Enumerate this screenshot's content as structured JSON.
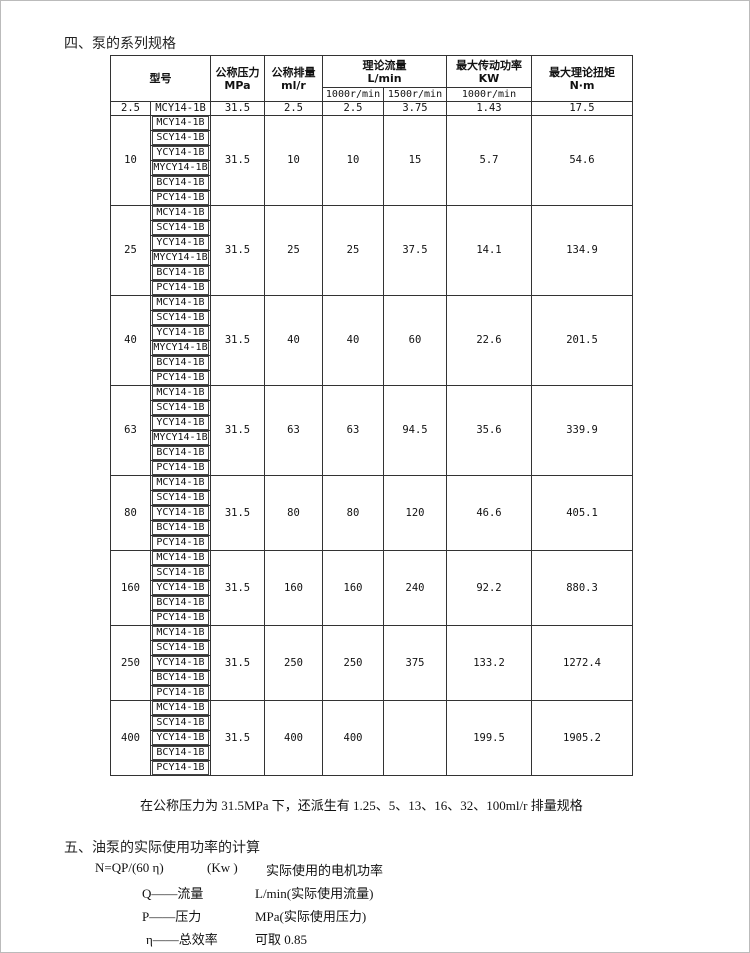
{
  "section4_title": "四、泵的系列规格",
  "table": {
    "headers": {
      "model": "型号",
      "pressure": "公称压力",
      "pressure_unit": "MPa",
      "displacement": "公称排量",
      "displacement_unit": "ml/r",
      "flow": "理论流量",
      "flow_unit": "L/min",
      "flow_1000": "1000r/min",
      "flow_1500": "1500r/min",
      "power": "最大传动功率",
      "power_unit": "KW",
      "power_speed": "1000r/min",
      "torque": "最大理论扭矩",
      "torque_unit": "N·m"
    },
    "groups": [
      {
        "size": "2.5",
        "models": [
          "MCY14-1B"
        ],
        "pressure": "31.5",
        "displacement": "2.5",
        "q1000": "2.5",
        "q1500": "3.75",
        "power": "1.43",
        "torque": "17.5"
      },
      {
        "size": "10",
        "models": [
          "MCY14-1B",
          "SCY14-1B",
          "YCY14-1B",
          "MYCY14-1B",
          "BCY14-1B",
          "PCY14-1B"
        ],
        "pressure": "31.5",
        "displacement": "10",
        "q1000": "10",
        "q1500": "15",
        "power": "5.7",
        "torque": "54.6"
      },
      {
        "size": "25",
        "models": [
          "MCY14-1B",
          "SCY14-1B",
          "YCY14-1B",
          "MYCY14-1B",
          "BCY14-1B",
          "PCY14-1B"
        ],
        "pressure": "31.5",
        "displacement": "25",
        "q1000": "25",
        "q1500": "37.5",
        "power": "14.1",
        "torque": "134.9"
      },
      {
        "size": "40",
        "models": [
          "MCY14-1B",
          "SCY14-1B",
          "YCY14-1B",
          "MYCY14-1B",
          "BCY14-1B",
          "PCY14-1B"
        ],
        "pressure": "31.5",
        "displacement": "40",
        "q1000": "40",
        "q1500": "60",
        "power": "22.6",
        "torque": "201.5"
      },
      {
        "size": "63",
        "models": [
          "MCY14-1B",
          "SCY14-1B",
          "YCY14-1B",
          "MYCY14-1B",
          "BCY14-1B",
          "PCY14-1B"
        ],
        "pressure": "31.5",
        "displacement": "63",
        "q1000": "63",
        "q1500": "94.5",
        "power": "35.6",
        "torque": "339.9"
      },
      {
        "size": "80",
        "models": [
          "MCY14-1B",
          "SCY14-1B",
          "YCY14-1B",
          "BCY14-1B",
          "PCY14-1B"
        ],
        "pressure": "31.5",
        "displacement": "80",
        "q1000": "80",
        "q1500": "120",
        "power": "46.6",
        "torque": "405.1"
      },
      {
        "size": "160",
        "models": [
          "MCY14-1B",
          "SCY14-1B",
          "YCY14-1B",
          "BCY14-1B",
          "PCY14-1B"
        ],
        "pressure": "31.5",
        "displacement": "160",
        "q1000": "160",
        "q1500": "240",
        "power": "92.2",
        "torque": "880.3"
      },
      {
        "size": "250",
        "models": [
          "MCY14-1B",
          "SCY14-1B",
          "YCY14-1B",
          "BCY14-1B",
          "PCY14-1B"
        ],
        "pressure": "31.5",
        "displacement": "250",
        "q1000": "250",
        "q1500": "375",
        "power": "133.2",
        "torque": "1272.4"
      },
      {
        "size": "400",
        "models": [
          "MCY14-1B",
          "SCY14-1B",
          "YCY14-1B",
          "BCY14-1B",
          "PCY14-1B"
        ],
        "pressure": "31.5",
        "displacement": "400",
        "q1000": "400",
        "q1500": "",
        "power": "199.5",
        "torque": "1905.2"
      }
    ]
  },
  "note": "在公称压力为 31.5MPa 下，还派生有 1.25、5、13、16、32、100ml/r 排量规格",
  "section5_title": "五、油泵的实际使用功率的计算",
  "formula": {
    "expr": "N=QP/(60 η)",
    "unit": "(Kw )",
    "desc": "实际使用的电机功率"
  },
  "vars": [
    {
      "sym": "Q——流量",
      "desc": "L/min(实际使用流量)"
    },
    {
      "sym": "P——压力",
      "desc": "MPa(实际使用压力)"
    },
    {
      "sym": "η——总效率",
      "desc": "可取 0.85"
    }
  ]
}
